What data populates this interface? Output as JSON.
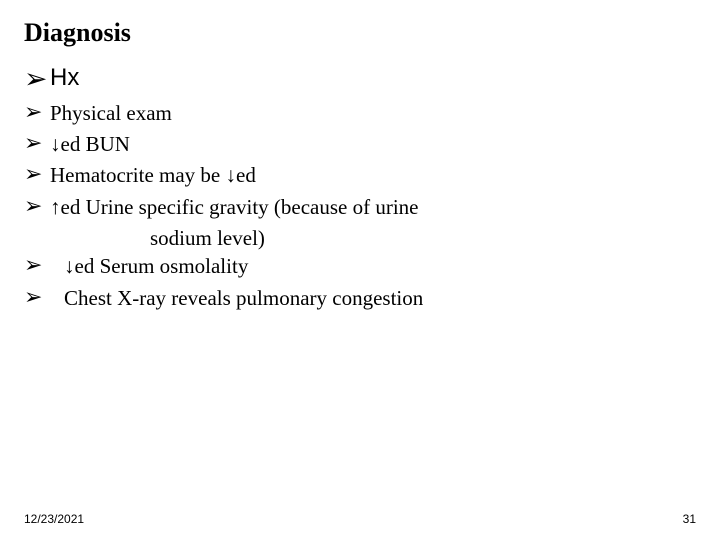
{
  "title": "Diagnosis",
  "bullet_glyph": "➢",
  "down_arrow": "↓",
  "up_arrow": "↑",
  "items": {
    "hx": "Hx",
    "pe": "Physical exam",
    "bun_suffix": "ed BUN",
    "hema_prefix": " Hematocrite may be ",
    "hema_suffix": "ed",
    "urine_suffix": "ed Urine specific gravity (because of urine",
    "urine_cont": "sodium level)",
    "serum_suffix": "ed Serum osmolality",
    "chest": "Chest X-ray reveals pulmonary congestion"
  },
  "footer": {
    "date": "12/23/2021",
    "page": "31"
  },
  "colors": {
    "background": "#ffffff",
    "text": "#000000"
  }
}
